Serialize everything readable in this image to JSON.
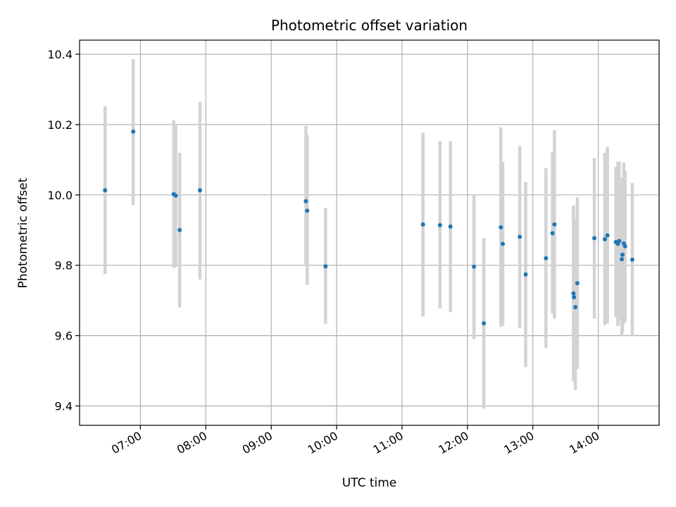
{
  "chart_data": {
    "type": "scatter",
    "title": "Photometric offset variation",
    "xlabel": "UTC time",
    "ylabel": "Photometric offset",
    "x_unit": "hours UTC",
    "xlim": [
      6.07,
      14.93
    ],
    "ylim": [
      9.345,
      10.44
    ],
    "x_ticks": [
      {
        "value": 7,
        "label": "07:00"
      },
      {
        "value": 8,
        "label": "08:00"
      },
      {
        "value": 9,
        "label": "09:00"
      },
      {
        "value": 10,
        "label": "10:00"
      },
      {
        "value": 11,
        "label": "11:00"
      },
      {
        "value": 12,
        "label": "12:00"
      },
      {
        "value": 13,
        "label": "13:00"
      },
      {
        "value": 14,
        "label": "14:00"
      }
    ],
    "y_ticks": [
      {
        "value": 9.4,
        "label": "9.4"
      },
      {
        "value": 9.6,
        "label": "9.6"
      },
      {
        "value": 9.8,
        "label": "9.8"
      },
      {
        "value": 10.0,
        "label": "10.0"
      },
      {
        "value": 10.2,
        "label": "10.2"
      },
      {
        "value": 10.4,
        "label": "10.4"
      }
    ],
    "grid": true,
    "marker_color": "#1f77b4",
    "errorbar_color": "#d3d3d3",
    "points": [
      {
        "x": 6.46,
        "y": 10.013,
        "ylow": 9.775,
        "yhigh": 10.252
      },
      {
        "x": 6.89,
        "y": 10.18,
        "ylow": 9.971,
        "yhigh": 10.386
      },
      {
        "x": 7.51,
        "y": 10.002,
        "ylow": 9.792,
        "yhigh": 10.212
      },
      {
        "x": 7.54,
        "y": 9.998,
        "ylow": 9.795,
        "yhigh": 10.2
      },
      {
        "x": 7.6,
        "y": 9.9,
        "ylow": 9.68,
        "yhigh": 10.12
      },
      {
        "x": 7.91,
        "y": 10.013,
        "ylow": 9.76,
        "yhigh": 10.264
      },
      {
        "x": 9.53,
        "y": 9.982,
        "ylow": 9.798,
        "yhigh": 10.196
      },
      {
        "x": 9.55,
        "y": 9.955,
        "ylow": 9.744,
        "yhigh": 10.17
      },
      {
        "x": 9.83,
        "y": 9.797,
        "ylow": 9.634,
        "yhigh": 9.962
      },
      {
        "x": 11.32,
        "y": 9.916,
        "ylow": 9.654,
        "yhigh": 10.177
      },
      {
        "x": 11.58,
        "y": 9.914,
        "ylow": 9.677,
        "yhigh": 10.153
      },
      {
        "x": 11.74,
        "y": 9.91,
        "ylow": 9.667,
        "yhigh": 10.153
      },
      {
        "x": 12.1,
        "y": 9.796,
        "ylow": 9.59,
        "yhigh": 10.0
      },
      {
        "x": 12.25,
        "y": 9.635,
        "ylow": 9.393,
        "yhigh": 9.877
      },
      {
        "x": 12.51,
        "y": 9.908,
        "ylow": 9.625,
        "yhigh": 10.192
      },
      {
        "x": 12.54,
        "y": 9.861,
        "ylow": 9.628,
        "yhigh": 10.094
      },
      {
        "x": 12.8,
        "y": 9.881,
        "ylow": 9.622,
        "yhigh": 10.139
      },
      {
        "x": 12.89,
        "y": 9.774,
        "ylow": 9.511,
        "yhigh": 10.037
      },
      {
        "x": 13.2,
        "y": 9.82,
        "ylow": 9.565,
        "yhigh": 10.076
      },
      {
        "x": 13.3,
        "y": 9.891,
        "ylow": 9.663,
        "yhigh": 10.122
      },
      {
        "x": 13.33,
        "y": 9.916,
        "ylow": 9.648,
        "yhigh": 10.184
      },
      {
        "x": 13.62,
        "y": 9.72,
        "ylow": 9.47,
        "yhigh": 9.97
      },
      {
        "x": 13.63,
        "y": 9.709,
        "ylow": 9.485,
        "yhigh": 9.935
      },
      {
        "x": 13.65,
        "y": 9.681,
        "ylow": 9.445,
        "yhigh": 9.92
      },
      {
        "x": 13.68,
        "y": 9.749,
        "ylow": 9.505,
        "yhigh": 9.993
      },
      {
        "x": 13.94,
        "y": 9.877,
        "ylow": 9.648,
        "yhigh": 10.105
      },
      {
        "x": 14.1,
        "y": 9.874,
        "ylow": 9.63,
        "yhigh": 10.12
      },
      {
        "x": 14.14,
        "y": 9.885,
        "ylow": 9.635,
        "yhigh": 10.136
      },
      {
        "x": 14.27,
        "y": 9.866,
        "ylow": 9.652,
        "yhigh": 10.08
      },
      {
        "x": 14.3,
        "y": 9.861,
        "ylow": 9.628,
        "yhigh": 10.094
      },
      {
        "x": 14.32,
        "y": 9.869,
        "ylow": 9.643,
        "yhigh": 10.095
      },
      {
        "x": 14.36,
        "y": 9.817,
        "ylow": 9.6,
        "yhigh": 10.034
      },
      {
        "x": 14.37,
        "y": 9.83,
        "ylow": 9.61,
        "yhigh": 10.05
      },
      {
        "x": 14.39,
        "y": 9.862,
        "ylow": 9.633,
        "yhigh": 10.092
      },
      {
        "x": 14.41,
        "y": 9.854,
        "ylow": 9.64,
        "yhigh": 10.068
      },
      {
        "x": 14.52,
        "y": 9.816,
        "ylow": 9.6,
        "yhigh": 10.034
      }
    ]
  }
}
